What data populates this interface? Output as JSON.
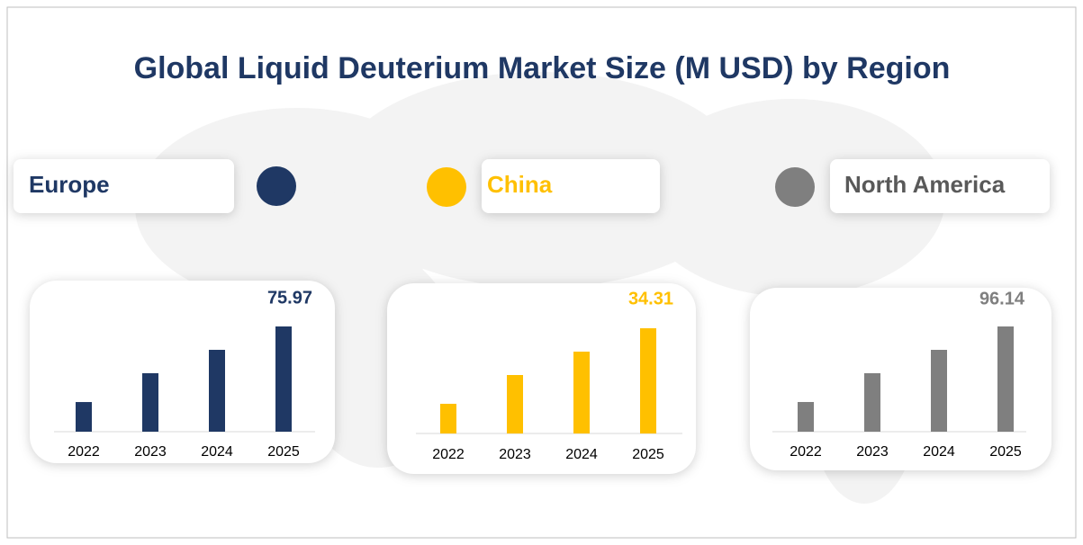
{
  "title": "Global  Liquid Deuterium Market Size (M USD) by Region",
  "chart_data": [
    {
      "type": "bar",
      "title": "Europe",
      "color": "#1f3864",
      "categories": [
        "2022",
        "2023",
        "2024",
        "2025"
      ],
      "values": [
        21.4,
        42.2,
        59.1,
        75.97
      ]
    },
    {
      "type": "bar",
      "title": "China",
      "color": "#ffc000",
      "categories": [
        "2022",
        "2023",
        "2024",
        "2025"
      ],
      "values": [
        9.68,
        19.06,
        26.69,
        34.31
      ]
    },
    {
      "type": "bar",
      "title": "North America",
      "color": "#7f7f7f",
      "categories": [
        "2022",
        "2023",
        "2024",
        "2025"
      ],
      "values": [
        27.12,
        53.41,
        74.78,
        96.14
      ]
    }
  ]
}
